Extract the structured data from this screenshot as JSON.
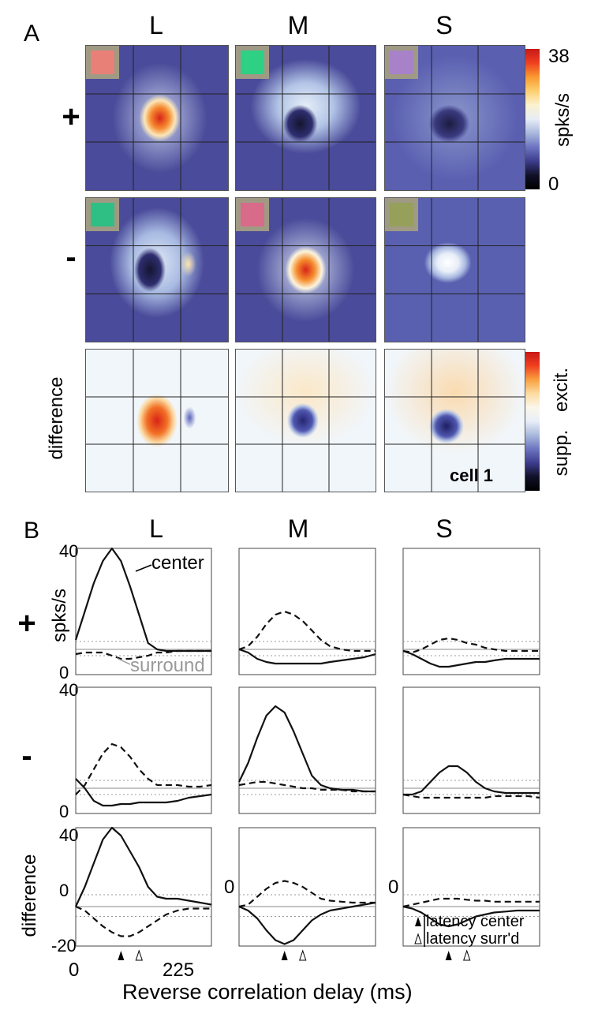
{
  "panel_a": {
    "letter": "A",
    "columns": [
      "L",
      "M",
      "S"
    ],
    "row_labels": [
      "+",
      "-",
      "difference"
    ],
    "colorbar_top": {
      "max": "38",
      "min": "0",
      "unit": "spks/s"
    },
    "colorbar_diff": {
      "top": "excit.",
      "bottom": "supp."
    },
    "cell_label": "cell 1",
    "colors": {
      "swatch_L_plus": "#e88078",
      "swatch_M_plus": "#2ed083",
      "swatch_S_plus": "#a882c8",
      "swatch_L_minus": "#2fbf85",
      "swatch_M_minus": "#d86a8a",
      "swatch_S_minus": "#96a05a",
      "map_background": "#4a4b9a",
      "map_dark": "#151530",
      "map_hot": "#d82418",
      "diff_background": "#f1f6fb"
    }
  },
  "panel_b": {
    "letter": "B",
    "columns": [
      "L",
      "M",
      "S"
    ],
    "row_labels": [
      "+",
      "-",
      "difference"
    ],
    "y_axis_label": "spks/s",
    "x_axis_label": "Reverse correlation delay (ms)",
    "x_tick_labels": [
      "0",
      "225"
    ],
    "y_tick_labels": {
      "top": "40",
      "bottom": "0",
      "diff_top": "40",
      "diff_zero": "0",
      "diff_bottom": "-20"
    },
    "annotations": {
      "center": "center",
      "surround": "surround"
    },
    "legend": {
      "center": "latency center",
      "surround": "latency surr'd"
    }
  },
  "chart_data": {
    "type": "line",
    "x_unit": "ms",
    "x": [
      0,
      20,
      40,
      60,
      80,
      100,
      120,
      140,
      160,
      180,
      200,
      225,
      250,
      275,
      300
    ],
    "rows": [
      {
        "row": "+",
        "ylim": [
          0,
          40
        ],
        "baseline": 8,
        "band": [
          6,
          10.5
        ],
        "panels": [
          {
            "col": "L",
            "series": [
              {
                "name": "center",
                "style": "solid",
                "values": [
                  11,
                  20,
                  29,
                  36,
                  40,
                  36,
                  28,
                  19,
                  10,
                  8,
                  7.5,
                  7.5,
                  7.5,
                  7.5,
                  7.5
                ]
              },
              {
                "name": "surround",
                "style": "dashed",
                "values": [
                  6.5,
                  7,
                  7,
                  7,
                  6,
                  5,
                  5,
                  5.5,
                  6,
                  7,
                  7,
                  7.5,
                  7.5,
                  7.5,
                  7.5
                ]
              }
            ]
          },
          {
            "col": "M",
            "series": [
              {
                "name": "center",
                "style": "solid",
                "values": [
                  8,
                  7,
                  5,
                  4,
                  3.5,
                  3.5,
                  3.5,
                  3.5,
                  3.5,
                  3.5,
                  4,
                  4.5,
                  5,
                  5.5,
                  6.5
                ]
              },
              {
                "name": "surround",
                "style": "dashed",
                "values": [
                  8,
                  9,
                  12,
                  16,
                  19,
                  20,
                  19,
                  17,
                  14,
                  11,
                  9,
                  8,
                  7.5,
                  7.5,
                  7.5
                ]
              }
            ]
          },
          {
            "col": "S",
            "series": [
              {
                "name": "center",
                "style": "solid",
                "values": [
                  7.5,
                  6.5,
                  5,
                  3.5,
                  2.5,
                  2.5,
                  3,
                  3.5,
                  4,
                  4,
                  4.5,
                  5,
                  5,
                  5,
                  5
                ]
              },
              {
                "name": "surround",
                "style": "dashed",
                "values": [
                  7.5,
                  7,
                  8,
                  9.5,
                  11,
                  11.5,
                  11,
                  10,
                  9.5,
                  8.5,
                  8,
                  7.5,
                  7.5,
                  7.5,
                  7.5
                ]
              }
            ]
          }
        ]
      },
      {
        "row": "-",
        "ylim": [
          0,
          40
        ],
        "baseline": 8,
        "band": [
          6,
          10.5
        ],
        "panels": [
          {
            "col": "L",
            "series": [
              {
                "name": "center",
                "style": "solid",
                "values": [
                  11,
                  8,
                  4,
                  2.5,
                  2.5,
                  3,
                  3,
                  3.5,
                  3.5,
                  3.5,
                  3.5,
                  4,
                  5,
                  5.5,
                  6
                ]
              },
              {
                "name": "surround",
                "style": "dashed",
                "values": [
                  6,
                  9,
                  14,
                  19,
                  22,
                  21,
                  18,
                  14,
                  11,
                  9,
                  9,
                  9,
                  8.5,
                  8.5,
                  9
                ]
              }
            ]
          },
          {
            "col": "M",
            "series": [
              {
                "name": "center",
                "style": "solid",
                "values": [
                  10,
                  16,
                  24,
                  31,
                  34,
                  32,
                  26,
                  19,
                  12,
                  9,
                  8,
                  7.5,
                  7.5,
                  7,
                  7
                ]
              },
              {
                "name": "surround",
                "style": "dashed",
                "values": [
                  9,
                  9.5,
                  10,
                  10,
                  9.5,
                  9,
                  8.5,
                  8,
                  8,
                  7.5,
                  7.5,
                  7.5,
                  7,
                  7,
                  7
                ]
              }
            ]
          },
          {
            "col": "S",
            "series": [
              {
                "name": "center",
                "style": "solid",
                "values": [
                  6,
                  6,
                  7,
                  10,
                  13,
                  15,
                  15,
                  13,
                  10,
                  8,
                  7,
                  6.5,
                  6.5,
                  6.5,
                  6.5
                ]
              },
              {
                "name": "surround",
                "style": "dashed",
                "values": [
                  6,
                  5.5,
                  5,
                  5,
                  5,
                  5,
                  5,
                  5,
                  5,
                  5,
                  5.5,
                  5.5,
                  5.5,
                  5.5,
                  5
                ]
              }
            ]
          }
        ]
      },
      {
        "row": "difference",
        "ylim": [
          -20,
          40
        ],
        "baseline": 0,
        "band": [
          -5,
          6
        ],
        "panels": [
          {
            "col": "L",
            "series": [
              {
                "name": "center",
                "style": "solid",
                "values": [
                  0,
                  10,
                  22,
                  34,
                  40,
                  36,
                  28,
                  20,
                  10,
                  5,
                  4,
                  4,
                  3,
                  2,
                  1
                ]
              },
              {
                "name": "surround",
                "style": "dashed",
                "values": [
                  0,
                  -2,
                  -6,
                  -10,
                  -13,
                  -15,
                  -15,
                  -13,
                  -10,
                  -7,
                  -4,
                  -2,
                  -1,
                  -1,
                  -1
                ]
              }
            ]
          },
          {
            "col": "M",
            "series": [
              {
                "name": "center",
                "style": "solid",
                "values": [
                  0,
                  -2,
                  -6,
                  -12,
                  -17,
                  -19,
                  -17,
                  -12,
                  -7,
                  -4,
                  -2,
                  -1,
                  0,
                  1,
                  2
                ]
              },
              {
                "name": "surround",
                "style": "dashed",
                "values": [
                  0,
                  1,
                  5,
                  9,
                  12,
                  13,
                  12,
                  10,
                  7,
                  4,
                  3,
                  2.5,
                  2,
                  2,
                  2
                ]
              }
            ]
          },
          {
            "col": "S",
            "series": [
              {
                "name": "center",
                "style": "solid",
                "values": [
                  0,
                  -1,
                  -3,
                  -6,
                  -9,
                  -10,
                  -9,
                  -7,
                  -5,
                  -4,
                  -3,
                  -2.5,
                  -2,
                  -2,
                  -2
                ]
              },
              {
                "name": "surround",
                "style": "dashed",
                "values": [
                  0,
                  1,
                  2,
                  3,
                  4,
                  4,
                  4,
                  3.5,
                  3,
                  3,
                  2.5,
                  2.5,
                  2.5,
                  2.5,
                  2.5
                ]
              }
            ]
          }
        ]
      }
    ],
    "latency_markers": {
      "center_ms": 100,
      "surround_ms": 140
    }
  }
}
